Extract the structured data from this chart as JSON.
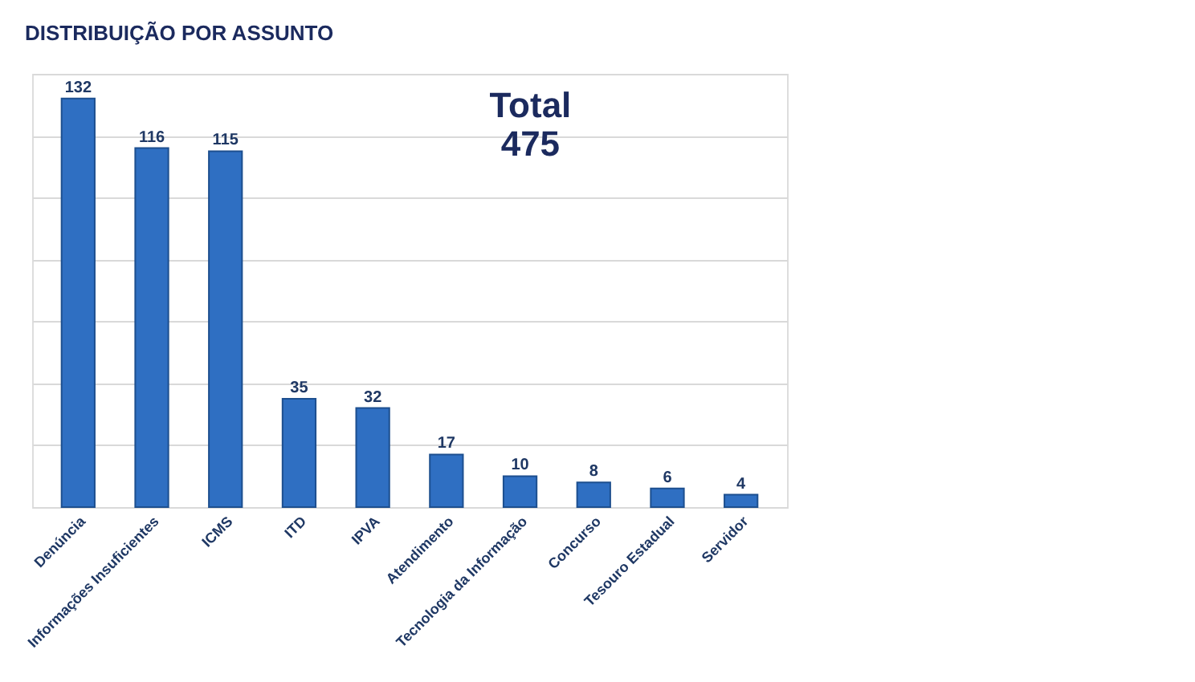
{
  "chart_data": {
    "type": "bar",
    "title": "DISTRIBUIÇÃO POR ASSUNTO",
    "categories": [
      "Denúncia",
      "Informações Insuficientes",
      "ICMS",
      "ITD",
      "IPVA",
      "Atendimento",
      "Tecnologia da Informação",
      "Concurso",
      "Tesouro Estadual",
      "Servidor"
    ],
    "values": [
      132,
      116,
      115,
      35,
      32,
      17,
      10,
      8,
      6,
      4
    ],
    "color": "#2f6fc2",
    "ylim": [
      0,
      140
    ],
    "tick_labels": "x",
    "grid": "y",
    "data_labels": true,
    "annotations": [
      "Total\n475"
    ]
  }
}
